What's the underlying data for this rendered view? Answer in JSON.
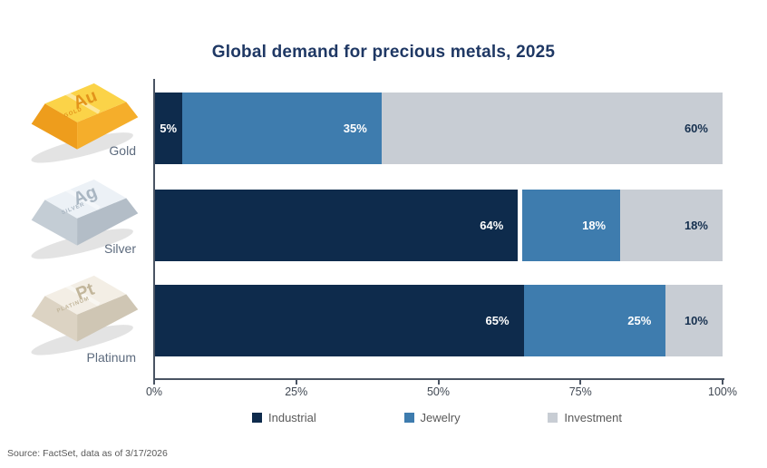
{
  "title": "Global demand for precious metals, 2025",
  "source_note": "Source: FactSet, data as of 3/17/2026",
  "colors": {
    "title_text": "#1F3864",
    "industrial": "#0E2B4C",
    "jewelry": "#3E7CAE",
    "investment": "#C8CDD4",
    "axis_line": "#4A5463",
    "axis_text": "#3F4752",
    "legend_text": "#595959",
    "metal_label_text": "#5D6B7E",
    "value_text_light": "#FFFFFF",
    "value_text_dark": "#16304F",
    "divider": "#FFFFFF"
  },
  "x_axis": {
    "tick_labels": [
      "0%",
      "25%",
      "50%",
      "75%",
      "100%"
    ],
    "min": 0,
    "max": 100
  },
  "legend": {
    "items": [
      {
        "label": "Industrial",
        "color_key": "industrial"
      },
      {
        "label": "Jewelry",
        "color_key": "jewelry"
      },
      {
        "label": "Investment",
        "color_key": "investment"
      }
    ]
  },
  "metals": [
    {
      "name": "Gold",
      "symbol": "Au",
      "engraving": "GOLD",
      "palette": {
        "top": "#FBD348",
        "front": "#F5AE2B",
        "side": "#EE9D1C",
        "text": "#E3941B"
      },
      "segments": [
        {
          "series": "Industrial",
          "value": 5,
          "label": "5%"
        },
        {
          "series": "Jewelry",
          "value": 35,
          "label": "35%"
        },
        {
          "series": "Investment",
          "value": 60,
          "label": "60%"
        }
      ]
    },
    {
      "name": "Silver",
      "symbol": "Ag",
      "engraving": "SILVER",
      "divider_after": "Industrial",
      "palette": {
        "top": "#ECF1F6",
        "front": "#B3BDC7",
        "side": "#C4CDD5",
        "text": "#A9B6C2"
      },
      "segments": [
        {
          "series": "Industrial",
          "value": 64,
          "label": "64%"
        },
        {
          "series": "Jewelry",
          "value": 18,
          "label": "18%"
        },
        {
          "series": "Investment",
          "value": 18,
          "label": "18%"
        }
      ]
    },
    {
      "name": "Platinum",
      "symbol": "Pt",
      "engraving": "PLATINUM",
      "palette": {
        "top": "#F3EEE5",
        "front": "#CFC6B4",
        "side": "#DCD3C3",
        "text": "#C2B69B"
      },
      "segments": [
        {
          "series": "Industrial",
          "value": 65,
          "label": "65%"
        },
        {
          "series": "Jewelry",
          "value": 25,
          "label": "25%"
        },
        {
          "series": "Investment",
          "value": 10,
          "label": "10%"
        }
      ]
    }
  ],
  "chart_data": {
    "type": "bar",
    "orientation": "horizontal",
    "stacked": true,
    "title": "Global demand for precious metals, 2025",
    "categories": [
      "Gold",
      "Silver",
      "Platinum"
    ],
    "series": [
      {
        "name": "Industrial",
        "color": "#0E2B4C",
        "values": [
          5,
          64,
          65
        ]
      },
      {
        "name": "Jewelry",
        "color": "#3E7CAE",
        "values": [
          35,
          18,
          25
        ]
      },
      {
        "name": "Investment",
        "color": "#C8CDD4",
        "values": [
          60,
          18,
          10
        ]
      }
    ],
    "x_ticks": [
      "0%",
      "25%",
      "50%",
      "75%",
      "100%"
    ],
    "xlim": [
      0,
      100
    ],
    "value_labels": "percent_inside_segments",
    "legend_position": "bottom",
    "grid": false,
    "source": "Source: FactSet, data as of 3/17/2026"
  }
}
